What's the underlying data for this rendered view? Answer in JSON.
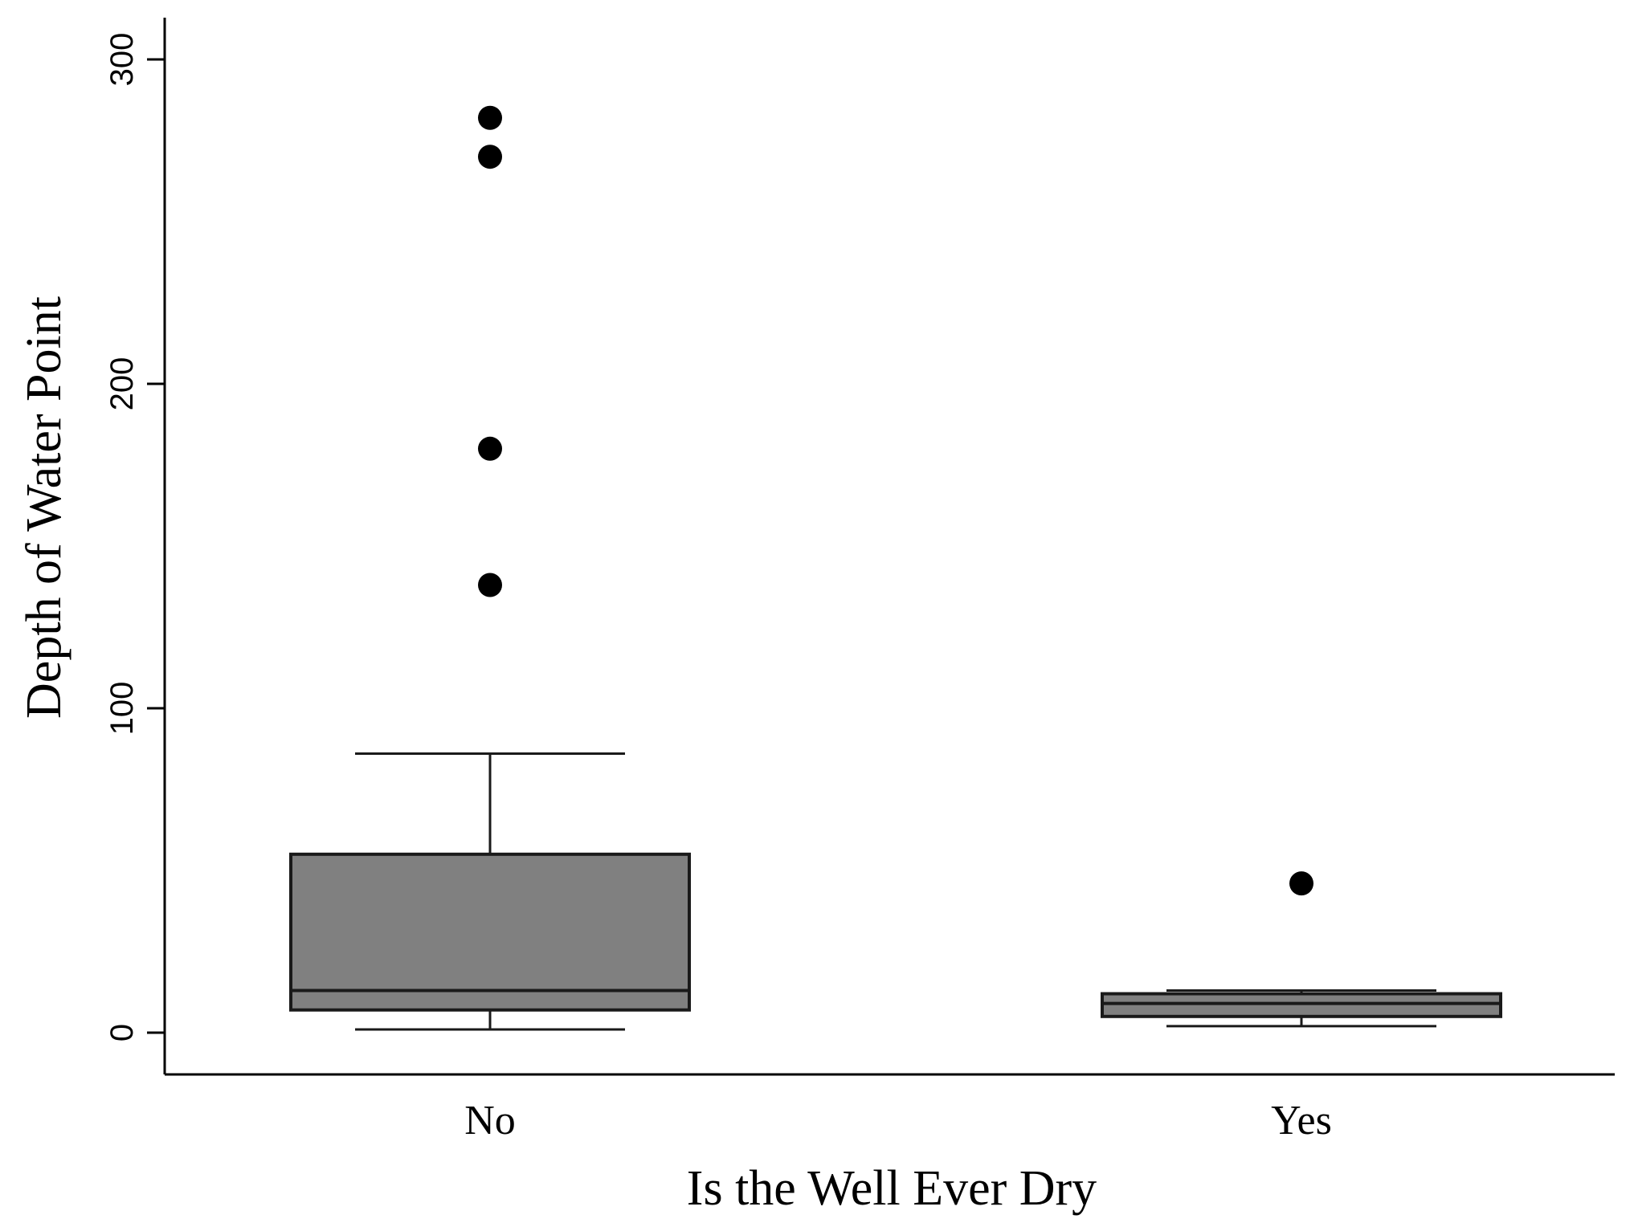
{
  "chart_data": {
    "type": "boxplot",
    "title": "",
    "xlabel": "Is the Well Ever Dry",
    "ylabel": "Depth of Water Point",
    "ylim": [
      -12,
      312
    ],
    "yticks": [
      0,
      100,
      200,
      300
    ],
    "grid": false,
    "legend": "none",
    "categories": [
      "No",
      "Yes"
    ],
    "boxes": [
      {
        "category": "No",
        "whisker_low": 1,
        "q1": 7,
        "median": 13,
        "q3": 55,
        "whisker_high": 86,
        "outliers": [
          138,
          180,
          270,
          282
        ]
      },
      {
        "category": "Yes",
        "whisker_low": 2,
        "q1": 5,
        "median": 9,
        "q3": 12,
        "whisker_high": 13,
        "outliers": [
          46
        ]
      }
    ],
    "colors": {
      "box_fill": "#808080",
      "stroke": "#1a1a1a",
      "points": "#000000"
    }
  }
}
